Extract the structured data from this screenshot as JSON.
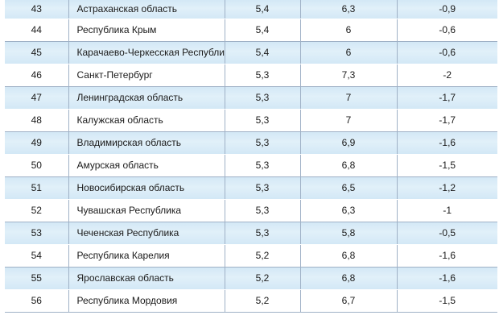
{
  "table": {
    "rows": [
      {
        "rank": "43",
        "region": "Астраханская область",
        "v1": "5,4",
        "v2": "6,3",
        "v3": "-0,9"
      },
      {
        "rank": "44",
        "region": "Республика Крым",
        "v1": "5,4",
        "v2": "6",
        "v3": "-0,6"
      },
      {
        "rank": "45",
        "region": "Карачаево-Черкесская Республика",
        "v1": "5,4",
        "v2": "6",
        "v3": "-0,6"
      },
      {
        "rank": "46",
        "region": "Санкт-Петербург",
        "v1": "5,3",
        "v2": "7,3",
        "v3": "-2"
      },
      {
        "rank": "47",
        "region": "Ленинградская область",
        "v1": "5,3",
        "v2": "7",
        "v3": "-1,7"
      },
      {
        "rank": "48",
        "region": "Калужская область",
        "v1": "5,3",
        "v2": "7",
        "v3": "-1,7"
      },
      {
        "rank": "49",
        "region": "Владимирская область",
        "v1": "5,3",
        "v2": "6,9",
        "v3": "-1,6"
      },
      {
        "rank": "50",
        "region": "Амурская область",
        "v1": "5,3",
        "v2": "6,8",
        "v3": "-1,5"
      },
      {
        "rank": "51",
        "region": "Новосибирская область",
        "v1": "5,3",
        "v2": "6,5",
        "v3": "-1,2"
      },
      {
        "rank": "52",
        "region": "Чувашская Республика",
        "v1": "5,3",
        "v2": "6,3",
        "v3": "-1"
      },
      {
        "rank": "53",
        "region": "Чеченская Республика",
        "v1": "5,3",
        "v2": "5,8",
        "v3": "-0,5"
      },
      {
        "rank": "54",
        "region": "Республика Карелия",
        "v1": "5,2",
        "v2": "6,8",
        "v3": "-1,6"
      },
      {
        "rank": "55",
        "region": "Ярославская область",
        "v1": "5,2",
        "v2": "6,8",
        "v3": "-1,6"
      },
      {
        "rank": "56",
        "region": "Республика Мордовия",
        "v1": "5,2",
        "v2": "6,7",
        "v3": "-1,5"
      }
    ]
  }
}
